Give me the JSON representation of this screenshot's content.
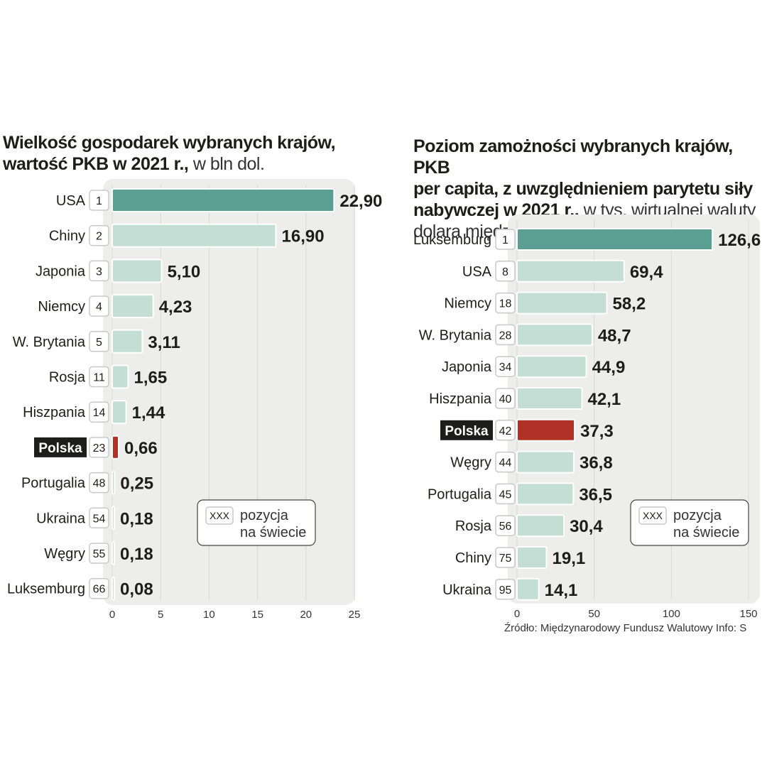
{
  "colors": {
    "highlight": "#5a9f92",
    "bar": "#c4ddd5",
    "polska": "#b03126",
    "plot_bg": "#ededec",
    "text": "#1d1d1b"
  },
  "legend": {
    "box_text": "XXX",
    "line1": "pozycja",
    "line2": "na świecie"
  },
  "source": "Źródło: Międzynarodowy Fundusz Walutowy  Info: S",
  "chart_data": [
    {
      "type": "bar",
      "orientation": "horizontal",
      "title_bold_line1": "Wielkość gospodarek wybranych krajów,",
      "title_bold_line2": "wartość PKB w 2021 r.,",
      "title_light_line2": "w bln dol.",
      "categories": [
        "USA",
        "Chiny",
        "Japonia",
        "Niemcy",
        "W. Brytania",
        "Rosja",
        "Hiszpania",
        "Polska",
        "Portugalia",
        "Ukraina",
        "Węgry",
        "Luksemburg"
      ],
      "ranks": [
        "1",
        "2",
        "3",
        "4",
        "5",
        "11",
        "14",
        "23",
        "48",
        "54",
        "55",
        "66"
      ],
      "values": [
        22.9,
        16.9,
        5.1,
        4.23,
        3.11,
        1.65,
        1.44,
        0.66,
        0.25,
        0.18,
        0.18,
        0.08
      ],
      "value_labels": [
        "22,90",
        "16,90",
        "5,10",
        "4,23",
        "3,11",
        "1,65",
        "1,44",
        "0,66",
        "0,25",
        "0,18",
        "0,18",
        "0,08"
      ],
      "xlim": [
        0,
        25
      ],
      "xticks": [
        0,
        5,
        10,
        15,
        20,
        25
      ],
      "xtick_labels": [
        "0",
        "5",
        "10",
        "15",
        "20",
        "25"
      ],
      "highlight_index": 0,
      "polska_index": 7
    },
    {
      "type": "bar",
      "orientation": "horizontal",
      "title_bold_line1": "Poziom zamożności wybranych krajów, PKB",
      "title_bold_line2": "per capita, z uwzględnieniem parytetu siły",
      "title_bold_line3": "nabywczej w 2021 r.,",
      "title_light_line3": "w tys. wirtualnej waluty",
      "title_light_line4": "dolara międzynarodowego",
      "categories": [
        "Luksemburg",
        "USA",
        "Niemcy",
        "W. Brytania",
        "Japonia",
        "Hiszpania",
        "Polska",
        "Węgry",
        "Portugalia",
        "Rosja",
        "Chiny",
        "Ukraina"
      ],
      "ranks": [
        "1",
        "8",
        "18",
        "28",
        "34",
        "40",
        "42",
        "44",
        "45",
        "56",
        "75",
        "95"
      ],
      "values": [
        126.6,
        69.4,
        58.2,
        48.7,
        44.9,
        42.1,
        37.3,
        36.8,
        36.5,
        30.4,
        19.1,
        14.1
      ],
      "value_labels": [
        "126,6",
        "69,4",
        "58,2",
        "48,7",
        "44,9",
        "42,1",
        "37,3",
        "36,8",
        "36,5",
        "30,4",
        "19,1",
        "14,1"
      ],
      "xlim": [
        0,
        150
      ],
      "xticks": [
        0,
        50,
        100,
        150
      ],
      "xtick_labels": [
        "0",
        "50",
        "100",
        "150"
      ],
      "highlight_index": 0,
      "polska_index": 6
    }
  ]
}
